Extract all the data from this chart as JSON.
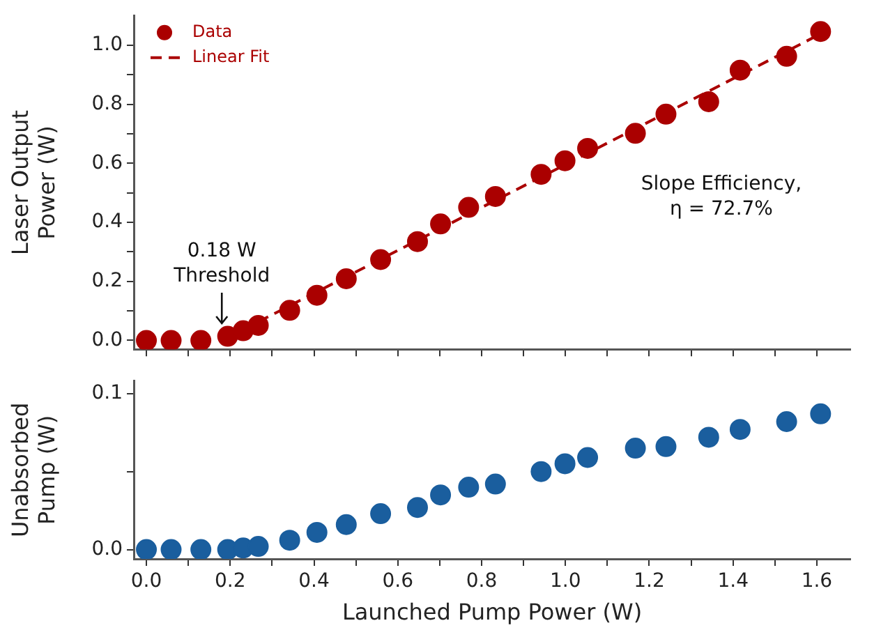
{
  "chart_data": [
    {
      "type": "scatter",
      "ylabel": "Laser Output\nPower (W)",
      "xlim": [
        -0.03,
        1.68
      ],
      "ylim": [
        -0.03,
        1.1
      ],
      "xticks": [
        0,
        {
          "value": 0.1,
          "label": null
        },
        0.2,
        {
          "value": 0.3,
          "label": null
        },
        0.4,
        {
          "value": 0.5,
          "label": null
        },
        0.6,
        {
          "value": 0.7,
          "label": null
        },
        0.8,
        {
          "value": 0.9,
          "label": null
        },
        1.0,
        {
          "value": 1.1,
          "label": null
        },
        1.2,
        {
          "value": 1.3,
          "label": null
        },
        1.4,
        {
          "value": 1.5,
          "label": null
        },
        1.6
      ],
      "yticks": [
        {
          "value": 0,
          "label": "0.0"
        },
        {
          "value": 0.1,
          "label": null
        },
        0.2,
        {
          "value": 0.3,
          "label": null
        },
        0.4,
        {
          "value": 0.5,
          "label": null
        },
        0.6,
        {
          "value": 0.7,
          "label": null
        },
        0.8,
        {
          "value": 0.9,
          "label": null
        },
        {
          "value": 1.0,
          "label": "1.0"
        }
      ],
      "tick_labels": "y",
      "grid": false,
      "legend": "top left",
      "series": [
        {
          "name": "Data",
          "type": "scatter",
          "marker": "circle",
          "color": "#aa0000",
          "x": [
            0.0,
            0.059,
            0.13,
            0.194,
            0.231,
            0.267,
            0.342,
            0.407,
            0.477,
            0.559,
            0.647,
            0.702,
            0.769,
            0.833,
            0.942,
            0.999,
            1.053,
            1.167,
            1.24,
            1.342,
            1.417,
            1.528,
            1.609
          ],
          "values": [
            0,
            0,
            0,
            0.014,
            0.033,
            0.051,
            0.102,
            0.153,
            0.209,
            0.274,
            0.335,
            0.395,
            0.451,
            0.488,
            0.563,
            0.609,
            0.651,
            0.702,
            0.767,
            0.809,
            0.916,
            0.963,
            1.047
          ]
        },
        {
          "name": "Linear Fit",
          "type": "line",
          "line_style": "dashed",
          "marker": "none",
          "color": "#aa0000",
          "x": [
            0.19,
            1.62
          ],
          "values": [
            0.007,
            1.047
          ]
        }
      ],
      "annotations": [
        {
          "text": "0.18 W\nThreshold",
          "x": 0.18,
          "y": 0.02
        },
        "Slope Efficiency,\nη = 72.7%"
      ]
    },
    {
      "type": "scatter",
      "xlabel": "Launched Pump Power (W)",
      "ylabel": "Unabsorbed\nPump (W)",
      "xlim": [
        -0.03,
        1.68
      ],
      "ylim": [
        -0.006,
        0.108
      ],
      "xticks": [
        {
          "value": 0,
          "label": "0.0"
        },
        {
          "value": 0.1,
          "label": null
        },
        0.2,
        {
          "value": 0.3,
          "label": null
        },
        0.4,
        {
          "value": 0.5,
          "label": null
        },
        0.6,
        {
          "value": 0.7,
          "label": null
        },
        0.8,
        {
          "value": 0.9,
          "label": null
        },
        {
          "value": 1.0,
          "label": "1.0"
        },
        {
          "value": 1.1,
          "label": null
        },
        1.2,
        {
          "value": 1.3,
          "label": null
        },
        1.4,
        {
          "value": 1.5,
          "label": null
        },
        1.6
      ],
      "yticks": [
        {
          "value": 0,
          "label": "0.0"
        },
        {
          "value": 0.05,
          "label": null
        },
        0.1
      ],
      "grid": false,
      "marker": "circle",
      "series": [
        {
          "color": "#1a5e9e",
          "x": [
            0.0,
            0.059,
            0.13,
            0.194,
            0.231,
            0.267,
            0.342,
            0.407,
            0.477,
            0.559,
            0.647,
            0.702,
            0.769,
            0.833,
            0.942,
            0.999,
            1.053,
            1.167,
            1.24,
            1.342,
            1.417,
            1.528,
            1.609
          ],
          "values": [
            0,
            0,
            0,
            0,
            0.001,
            0.002,
            0.006,
            0.011,
            0.016,
            0.023,
            0.027,
            0.035,
            0.04,
            0.042,
            0.05,
            0.055,
            0.059,
            0.065,
            0.066,
            0.072,
            0.077,
            0.082,
            0.087
          ]
        }
      ]
    }
  ]
}
